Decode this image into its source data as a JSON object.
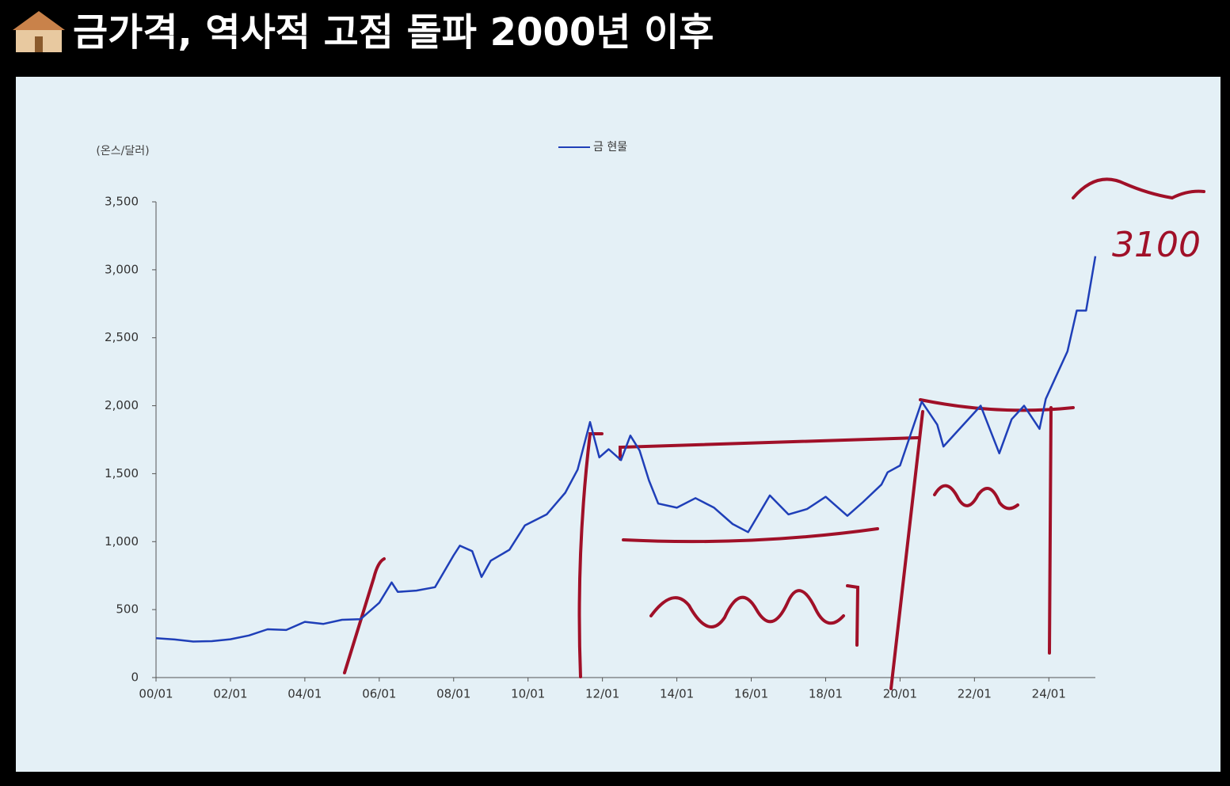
{
  "header": {
    "title": "금가격, 역사적 고점 돌파 2000년 이후"
  },
  "chart_data": {
    "type": "line",
    "y_label": "(온스/달러)",
    "annotation": "3100",
    "x": [
      "2000-01",
      "2000-07",
      "2001-01",
      "2001-07",
      "2002-01",
      "2002-07",
      "2003-01",
      "2003-07",
      "2004-01",
      "2004-07",
      "2005-01",
      "2005-07",
      "2006-01",
      "2006-05",
      "2006-07",
      "2007-01",
      "2007-07",
      "2008-01",
      "2008-03",
      "2008-07",
      "2008-10",
      "2009-01",
      "2009-07",
      "2009-12",
      "2010-07",
      "2011-01",
      "2011-05",
      "2011-09",
      "2011-12",
      "2012-03",
      "2012-07",
      "2012-10",
      "2013-01",
      "2013-04",
      "2013-07",
      "2014-01",
      "2014-07",
      "2015-01",
      "2015-07",
      "2015-12",
      "2016-07",
      "2017-01",
      "2017-07",
      "2018-01",
      "2018-08",
      "2019-01",
      "2019-07",
      "2019-09",
      "2020-01",
      "2020-08",
      "2021-01",
      "2021-03",
      "2021-07",
      "2022-03",
      "2022-09",
      "2023-01",
      "2023-05",
      "2023-10",
      "2023-12",
      "2024-03",
      "2024-07",
      "2024-10",
      "2025-01",
      "2025-04"
    ],
    "series": [
      {
        "name": "금 현물",
        "color": "#1f3fb8",
        "values": [
          290,
          280,
          265,
          268,
          282,
          310,
          355,
          350,
          410,
          395,
          425,
          430,
          550,
          700,
          630,
          640,
          665,
          900,
          970,
          930,
          740,
          860,
          940,
          1120,
          1200,
          1360,
          1530,
          1880,
          1620,
          1680,
          1600,
          1780,
          1670,
          1450,
          1280,
          1250,
          1320,
          1250,
          1130,
          1070,
          1340,
          1200,
          1240,
          1330,
          1190,
          1290,
          1420,
          1510,
          1560,
          2030,
          1860,
          1700,
          1800,
          2000,
          1650,
          1900,
          2000,
          1830,
          2050,
          2200,
          2400,
          2700,
          2700,
          3100
        ]
      }
    ],
    "xlim": [
      "2000-01",
      "2025-04"
    ],
    "xticks": [
      {
        "value": "2000-01",
        "label": "00/01"
      },
      {
        "value": "2002-01",
        "label": "02/01"
      },
      {
        "value": "2004-01",
        "label": "04/01"
      },
      {
        "value": "2006-01",
        "label": "06/01"
      },
      {
        "value": "2008-01",
        "label": "08/01"
      },
      {
        "value": "2010-01",
        "label": "10/01"
      },
      {
        "value": "2012-01",
        "label": "12/01"
      },
      {
        "value": "2014-01",
        "label": "14/01"
      },
      {
        "value": "2016-01",
        "label": "16/01"
      },
      {
        "value": "2018-01",
        "label": "18/01"
      },
      {
        "value": "2020-01",
        "label": "20/01"
      },
      {
        "value": "2022-01",
        "label": "22/01"
      },
      {
        "value": "2024-01",
        "label": "24/01"
      }
    ],
    "ylim": [
      0,
      3500
    ],
    "yticks": [
      0,
      500,
      {
        "value": 1000,
        "label": "1,000"
      },
      {
        "value": 1500,
        "label": "1,500"
      },
      {
        "value": 2000,
        "label": "2,000"
      },
      {
        "value": 2500,
        "label": "2,500"
      },
      {
        "value": 3000,
        "label": "3,000"
      },
      {
        "value": 3500,
        "label": "3,500"
      }
    ]
  }
}
